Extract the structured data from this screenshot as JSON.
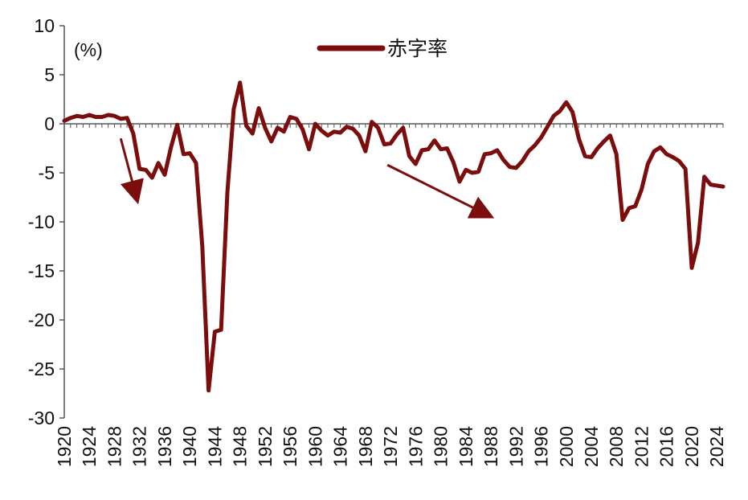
{
  "chart_data": {
    "type": "line",
    "unit_label": "(%)",
    "legend_position": "top-center",
    "grid": false,
    "ylim": [
      -30,
      10
    ],
    "yticks": [
      10,
      5,
      0,
      -5,
      -10,
      -15,
      -20,
      -25,
      -30
    ],
    "xlim": [
      1920,
      2025
    ],
    "xticks": [
      1920,
      1924,
      1928,
      1932,
      1936,
      1940,
      1944,
      1948,
      1952,
      1956,
      1960,
      1964,
      1968,
      1972,
      1976,
      1980,
      1984,
      1988,
      1992,
      1996,
      2000,
      2004,
      2008,
      2012,
      2016,
      2020,
      2024
    ],
    "colors": {
      "series": "#7b0d0d",
      "axis": "#555555"
    },
    "series": [
      {
        "name": "赤字率",
        "x": [
          1920,
          1921,
          1922,
          1923,
          1924,
          1925,
          1926,
          1927,
          1928,
          1929,
          1930,
          1931,
          1932,
          1933,
          1934,
          1935,
          1936,
          1937,
          1938,
          1939,
          1940,
          1941,
          1942,
          1943,
          1944,
          1945,
          1946,
          1947,
          1948,
          1949,
          1950,
          1951,
          1952,
          1953,
          1954,
          1955,
          1956,
          1957,
          1958,
          1959,
          1960,
          1961,
          1962,
          1963,
          1964,
          1965,
          1966,
          1967,
          1968,
          1969,
          1970,
          1971,
          1972,
          1973,
          1974,
          1975,
          1976,
          1977,
          1978,
          1979,
          1980,
          1981,
          1982,
          1983,
          1984,
          1985,
          1986,
          1987,
          1988,
          1989,
          1990,
          1991,
          1992,
          1993,
          1994,
          1995,
          1996,
          1997,
          1998,
          1999,
          2000,
          2001,
          2002,
          2003,
          2004,
          2005,
          2006,
          2007,
          2008,
          2009,
          2010,
          2011,
          2012,
          2013,
          2014,
          2015,
          2016,
          2017,
          2018,
          2019,
          2020,
          2021,
          2022,
          2023,
          2024,
          2025
        ],
        "y": [
          0.3,
          0.6,
          0.8,
          0.7,
          0.9,
          0.7,
          0.7,
          0.9,
          0.8,
          0.5,
          0.6,
          -1.0,
          -4.6,
          -4.7,
          -5.5,
          -4.0,
          -5.2,
          -2.4,
          -0.1,
          -3.1,
          -3.0,
          -4.0,
          -12.5,
          -27.2,
          -21.2,
          -21.0,
          -7.0,
          1.5,
          4.2,
          -0.2,
          -1.0,
          1.6,
          -0.4,
          -1.8,
          -0.4,
          -0.8,
          0.7,
          0.5,
          -0.6,
          -2.6,
          0.0,
          -0.7,
          -1.2,
          -0.8,
          -0.9,
          -0.3,
          -0.5,
          -1.2,
          -2.8,
          0.2,
          -0.4,
          -2.1,
          -2.0,
          -1.1,
          -0.4,
          -3.3,
          -4.1,
          -2.7,
          -2.6,
          -1.7,
          -2.6,
          -2.5,
          -3.9,
          -5.9,
          -4.7,
          -5.0,
          -4.9,
          -3.1,
          -3.0,
          -2.7,
          -3.7,
          -4.4,
          -4.5,
          -3.8,
          -2.8,
          -2.2,
          -1.4,
          -0.3,
          0.8,
          1.3,
          2.2,
          1.2,
          -1.5,
          -3.3,
          -3.4,
          -2.5,
          -1.8,
          -1.2,
          -3.1,
          -9.8,
          -8.6,
          -8.4,
          -6.7,
          -4.1,
          -2.8,
          -2.4,
          -3.1,
          -3.4,
          -3.8,
          -4.6,
          -14.7,
          -12.1,
          -5.4,
          -6.2,
          -6.3,
          -6.4
        ]
      }
    ],
    "annotations": [
      {
        "type": "arrow",
        "from": [
          1929,
          -1.5
        ],
        "to": [
          1931.5,
          -7.5
        ]
      },
      {
        "type": "arrow",
        "from": [
          1971.5,
          -4.2
        ],
        "to": [
          1987.5,
          -9.3
        ]
      }
    ]
  }
}
